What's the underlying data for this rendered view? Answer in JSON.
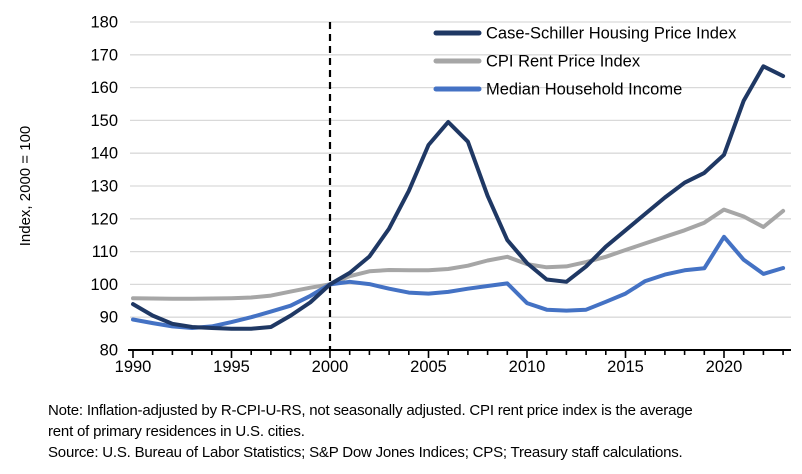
{
  "chart_data": {
    "type": "line",
    "title": "",
    "xlabel": "",
    "ylabel": "Index, 2000 = 100",
    "ylim": [
      80,
      180
    ],
    "xlim": [
      1990,
      2023.4
    ],
    "grid": "horizontal",
    "legend_position": "top-right-inside",
    "y_ticks": [
      80,
      90,
      100,
      110,
      120,
      130,
      140,
      150,
      160,
      170,
      180
    ],
    "x_major_ticks": [
      1990,
      1995,
      2000,
      2005,
      2010,
      2015,
      2020
    ],
    "x_minor_tick_interval": 1,
    "reference_line": {
      "x": 2000,
      "style": "dashed",
      "color": "#000000",
      "label": ""
    },
    "x": [
      1990,
      1991,
      1992,
      1993,
      1994,
      1995,
      1996,
      1997,
      1998,
      1999,
      2000,
      2001,
      2002,
      2003,
      2004,
      2005,
      2006,
      2007,
      2008,
      2009,
      2010,
      2011,
      2012,
      2013,
      2014,
      2015,
      2016,
      2017,
      2018,
      2019,
      2020,
      2021,
      2022,
      2023
    ],
    "series": [
      {
        "name": "Case-Schiller Housing Price Index",
        "color": "#1F3864",
        "line_width": 4,
        "values": [
          94,
          90.5,
          88,
          87,
          86.7,
          86.5,
          86.5,
          87,
          90.5,
          94.5,
          100,
          103.5,
          108.5,
          117,
          128.5,
          142.5,
          149.5,
          143.5,
          127,
          113.5,
          106.5,
          101.5,
          100.8,
          105.5,
          111.5,
          116.5,
          121.5,
          126.5,
          131,
          134,
          139.5,
          156,
          166.5,
          163.5
        ]
      },
      {
        "name": "CPI Rent Price Index",
        "color": "#A6A6A6",
        "line_width": 4,
        "values": [
          95.8,
          95.7,
          95.6,
          95.6,
          95.7,
          95.8,
          96,
          96.6,
          97.8,
          99,
          100,
          102.5,
          104,
          104.4,
          104.3,
          104.3,
          104.7,
          105.7,
          107.3,
          108.4,
          106.2,
          105.2,
          105.5,
          106.8,
          108.4,
          110.5,
          112.5,
          114.5,
          116.5,
          118.8,
          122.8,
          120.7,
          117.5,
          122.4
        ]
      },
      {
        "name": "Median Household Income",
        "color": "#4472C4",
        "line_width": 4,
        "values": [
          89.3,
          88.2,
          87.2,
          86.7,
          87.2,
          88.5,
          90,
          91.7,
          93.5,
          96.5,
          100,
          100.8,
          100.1,
          98.7,
          97.5,
          97.2,
          97.7,
          98.7,
          99.5,
          100.3,
          94.3,
          92.3,
          92,
          92.3,
          94.7,
          97.2,
          101,
          103,
          104.3,
          104.9,
          114.5,
          107.5,
          103.2,
          105
        ]
      }
    ]
  },
  "colors": {
    "grid": "#D9D9D9",
    "axis": "#000000",
    "background": "#FFFFFF"
  },
  "notes": {
    "note_line1": "Note: Inflation-adjusted by R-CPI-U-RS, not seasonally adjusted. CPI rent price index is the average",
    "note_line2": "rent of primary residences in U.S. cities.",
    "source": "Source: U.S. Bureau of Labor Statistics; S&P Dow Jones Indices; CPS; Treasury staff calculations."
  }
}
